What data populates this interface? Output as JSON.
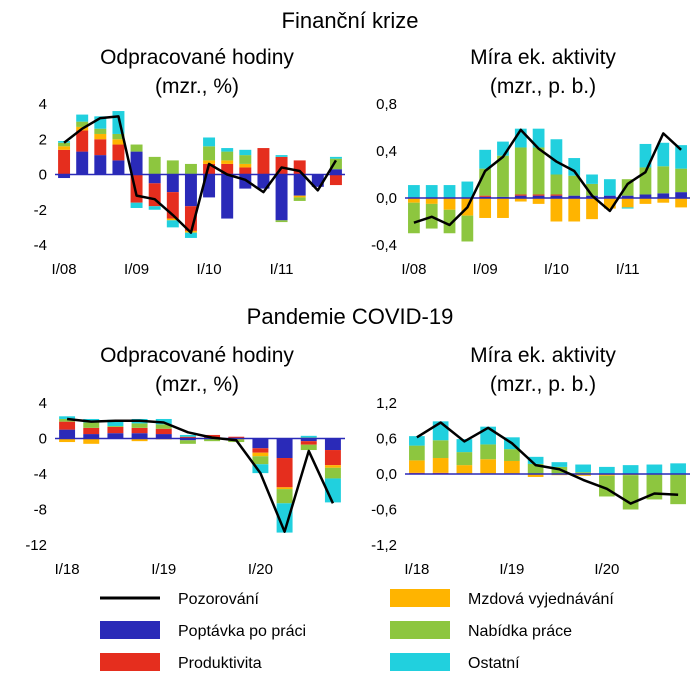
{
  "sections": [
    {
      "title": "Finanční krize"
    },
    {
      "title": "Pandemie COVID-19"
    }
  ],
  "legend": [
    {
      "key": "pozorovani",
      "label": "Pozorování",
      "kind": "line",
      "color": "#000000"
    },
    {
      "key": "mzdove",
      "label": "Mzdová vyjednávání",
      "kind": "bar",
      "color": "#FFB400"
    },
    {
      "key": "poptavka",
      "label": "Poptávka po práci",
      "kind": "bar",
      "color": "#2A2AB8"
    },
    {
      "key": "nabidka",
      "label": "Nabídka práce",
      "kind": "bar",
      "color": "#8DC63F"
    },
    {
      "key": "produktivita",
      "label": "Produktivita",
      "kind": "bar",
      "color": "#E52E1E"
    },
    {
      "key": "ostatni",
      "label": "Ostatní",
      "kind": "bar",
      "color": "#21D0DE"
    }
  ],
  "chart_data": [
    {
      "type": "bar",
      "title_line1": "Odpracované hodiny",
      "title_line2": "(mzr., %)",
      "x_ticks": [
        "I/08",
        "I/09",
        "I/10",
        "I/11"
      ],
      "x_tick_index": [
        0,
        4,
        8,
        12
      ],
      "y_ticks": [
        "4",
        "2",
        "0",
        "-2",
        "-4"
      ],
      "ylim": [
        -4,
        4
      ],
      "series": [
        {
          "key": "poptavka",
          "values": [
            -0.2,
            1.3,
            1.1,
            0.8,
            1.3,
            -0.5,
            -1.0,
            -1.8,
            -1.3,
            -2.5,
            -0.8,
            -0.8,
            -2.6,
            -1.2,
            -0.7,
            0.3
          ]
        },
        {
          "key": "produktivita",
          "values": [
            1.4,
            1.2,
            0.9,
            0.9,
            -1.6,
            -1.3,
            -1.5,
            -1.4,
            0.6,
            0.6,
            0.4,
            1.5,
            1.0,
            0.8,
            0.0,
            -0.6
          ]
        },
        {
          "key": "mzdove",
          "values": [
            0.2,
            0.2,
            0.3,
            0.3,
            0.0,
            0.0,
            -0.1,
            -0.1,
            0.2,
            0.2,
            0.2,
            0.0,
            0.0,
            -0.1,
            0.0,
            0.0
          ]
        },
        {
          "key": "nabidka",
          "values": [
            0.2,
            0.3,
            0.3,
            0.3,
            0.4,
            1.0,
            0.8,
            0.6,
            0.8,
            0.5,
            0.5,
            0.0,
            -0.1,
            -0.2,
            0.0,
            0.6
          ]
        },
        {
          "key": "ostatni",
          "values": [
            0.1,
            0.4,
            0.7,
            1.3,
            -0.3,
            -0.2,
            -0.4,
            -0.3,
            0.5,
            0.2,
            0.3,
            0.0,
            0.1,
            0.0,
            0.0,
            0.1
          ]
        }
      ],
      "line": {
        "key": "pozorovani",
        "values": [
          1.8,
          2.6,
          3.2,
          3.3,
          -1.2,
          -1.4,
          -2.3,
          -3.3,
          0.6,
          0.0,
          -0.3,
          -1.0,
          0.4,
          0.2,
          -0.9,
          0.8
        ]
      }
    },
    {
      "type": "bar",
      "title_line1": "Míra ek. aktivity",
      "title_line2": "(mzr., p. b.)",
      "x_ticks": [
        "I/08",
        "I/09",
        "I/10",
        "I/11"
      ],
      "x_tick_index": [
        0,
        4,
        8,
        12
      ],
      "y_ticks": [
        "0,8",
        "0,4",
        "0,0",
        "-0,4"
      ],
      "ylim": [
        -0.4,
        0.8
      ],
      "series": [
        {
          "key": "poptavka",
          "values": [
            0.0,
            0.0,
            0.0,
            0.0,
            0.01,
            0.01,
            0.02,
            0.02,
            0.02,
            0.02,
            0.02,
            0.02,
            0.02,
            0.03,
            0.04,
            0.05
          ]
        },
        {
          "key": "produktivita",
          "values": [
            0.0,
            0.0,
            0.0,
            0.0,
            0.01,
            0.0,
            0.01,
            0.01,
            0.01,
            0.0,
            0.0,
            0.0,
            0.0,
            0.0,
            0.0,
            0.0
          ]
        },
        {
          "key": "mzdove",
          "values": [
            -0.04,
            -0.05,
            -0.1,
            -0.15,
            -0.17,
            -0.17,
            -0.03,
            -0.05,
            -0.2,
            -0.2,
            -0.18,
            -0.09,
            -0.08,
            -0.05,
            -0.04,
            -0.08
          ]
        },
        {
          "key": "nabidka",
          "values": [
            -0.26,
            -0.21,
            -0.2,
            -0.22,
            0.23,
            0.35,
            0.4,
            0.4,
            0.17,
            0.17,
            0.1,
            0.0,
            0.14,
            0.23,
            0.23,
            0.2
          ]
        },
        {
          "key": "ostatni",
          "values": [
            0.11,
            0.11,
            0.11,
            0.14,
            0.16,
            0.12,
            0.16,
            0.16,
            0.3,
            0.15,
            0.08,
            0.14,
            -0.01,
            0.2,
            0.2,
            0.2
          ]
        }
      ],
      "line": {
        "key": "pozorovani",
        "values": [
          -0.21,
          -0.16,
          -0.23,
          -0.08,
          0.23,
          0.35,
          0.58,
          0.42,
          0.31,
          0.23,
          0.02,
          -0.11,
          0.12,
          0.22,
          0.55,
          0.41
        ]
      }
    },
    {
      "type": "bar",
      "title_line1": "Odpracované hodiny",
      "title_line2": "(mzr., %)",
      "x_ticks": [
        "I/18",
        "I/19",
        "I/20"
      ],
      "x_tick_index": [
        0,
        4,
        8
      ],
      "y_ticks": [
        "4",
        "0",
        "-4",
        "-8",
        "-12"
      ],
      "ylim": [
        -12,
        4
      ],
      "series": [
        {
          "key": "poptavka",
          "values": [
            1.0,
            0.5,
            0.6,
            0.6,
            0.5,
            -0.2,
            0.0,
            0.0,
            -1.1,
            -2.2,
            -0.3,
            -1.3
          ]
        },
        {
          "key": "produktivita",
          "values": [
            0.9,
            0.7,
            0.7,
            0.6,
            0.6,
            0.2,
            0.4,
            0.2,
            -0.5,
            -3.3,
            -0.4,
            -1.7
          ]
        },
        {
          "key": "mzdove",
          "values": [
            -0.4,
            -0.6,
            0.0,
            -0.3,
            -0.1,
            0.0,
            0.0,
            -0.1,
            -0.4,
            -0.2,
            0.1,
            -0.3
          ]
        },
        {
          "key": "nabidka",
          "values": [
            0.3,
            0.6,
            0.1,
            0.5,
            0.5,
            -0.4,
            -0.3,
            -0.3,
            -0.9,
            -1.6,
            -0.6,
            -1.2
          ]
        },
        {
          "key": "ostatni",
          "values": [
            0.3,
            0.4,
            0.7,
            0.5,
            0.6,
            0.2,
            0.0,
            0.0,
            -1.0,
            -3.3,
            0.2,
            -2.7
          ]
        }
      ],
      "line": {
        "key": "pozorovani",
        "values": [
          2.2,
          1.9,
          2.0,
          2.0,
          1.8,
          0.7,
          0.1,
          -0.2,
          -3.9,
          -10.5,
          -1.4,
          -7.3
        ]
      }
    },
    {
      "type": "bar",
      "title_line1": "Míra ek. aktivity",
      "title_line2": "(mzr., p. b.)",
      "x_ticks": [
        "I/18",
        "I/19",
        "I/20"
      ],
      "x_tick_index": [
        0,
        4,
        8
      ],
      "y_ticks": [
        "1,2",
        "0,6",
        "0,0",
        "-0,6",
        "-1,2"
      ],
      "ylim": [
        -1.2,
        1.2
      ],
      "series": [
        {
          "key": "poptavka",
          "values": [
            0.01,
            0.01,
            0.01,
            0.01,
            0.01,
            0.0,
            0.0,
            0.0,
            0.0,
            0.0,
            0.0,
            0.0
          ]
        },
        {
          "key": "produktivita",
          "values": [
            0.01,
            0.01,
            0.0,
            0.0,
            0.0,
            0.0,
            0.0,
            0.0,
            0.0,
            0.0,
            0.0,
            0.0
          ]
        },
        {
          "key": "mzdove",
          "values": [
            0.21,
            0.25,
            0.14,
            0.24,
            0.21,
            -0.05,
            -0.02,
            -0.03,
            -0.03,
            -0.02,
            -0.01,
            -0.01
          ]
        },
        {
          "key": "nabidka",
          "values": [
            0.25,
            0.3,
            0.22,
            0.25,
            0.2,
            0.17,
            0.12,
            0.03,
            -0.35,
            -0.58,
            -0.42,
            -0.5
          ]
        },
        {
          "key": "ostatni",
          "values": [
            0.16,
            0.32,
            0.22,
            0.3,
            0.2,
            0.12,
            0.08,
            0.13,
            0.12,
            0.15,
            0.16,
            0.18
          ]
        }
      ],
      "line": {
        "key": "pozorovani",
        "values": [
          0.62,
          0.87,
          0.55,
          0.78,
          0.52,
          0.15,
          0.08,
          -0.1,
          -0.25,
          -0.5,
          -0.33,
          -0.35
        ]
      }
    }
  ]
}
